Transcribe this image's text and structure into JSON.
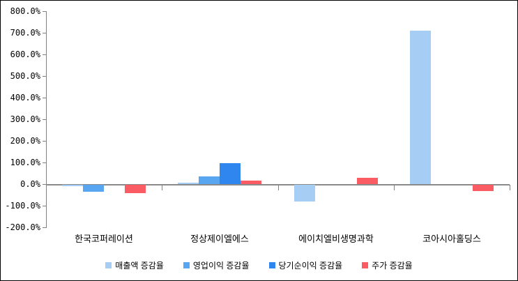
{
  "chart_data": {
    "type": "bar",
    "title": "",
    "xlabel": "",
    "ylabel": "",
    "ylim": [
      -200,
      800
    ],
    "ytick_step": 100,
    "ytick_labels": [
      "800.0%",
      "700.0%",
      "600.0%",
      "500.0%",
      "400.0%",
      "300.0%",
      "200.0%",
      "100.0%",
      "0.0%",
      "-100.0%",
      "-200.0%"
    ],
    "grid": false,
    "legend_position": "bottom",
    "axis_color": "#808080",
    "categories": [
      "한국코퍼레이션",
      "정상제이엘에스",
      "에이치엘비생명과학",
      "코아시아홀딩스"
    ],
    "series": [
      {
        "name": "매출액 증감율",
        "color": "#A6CDF4",
        "values": [
          -5,
          5,
          -76,
          711
        ]
      },
      {
        "name": "영업이익 증감율",
        "color": "#58A6F2",
        "values": [
          -33,
          36,
          0,
          0
        ]
      },
      {
        "name": "당기순이익 증감율",
        "color": "#2E86EE",
        "values": [
          0,
          96,
          0,
          0
        ]
      },
      {
        "name": "주가 증감율",
        "color": "#FB5B63",
        "values": [
          -40,
          15,
          30,
          -28
        ]
      }
    ]
  }
}
